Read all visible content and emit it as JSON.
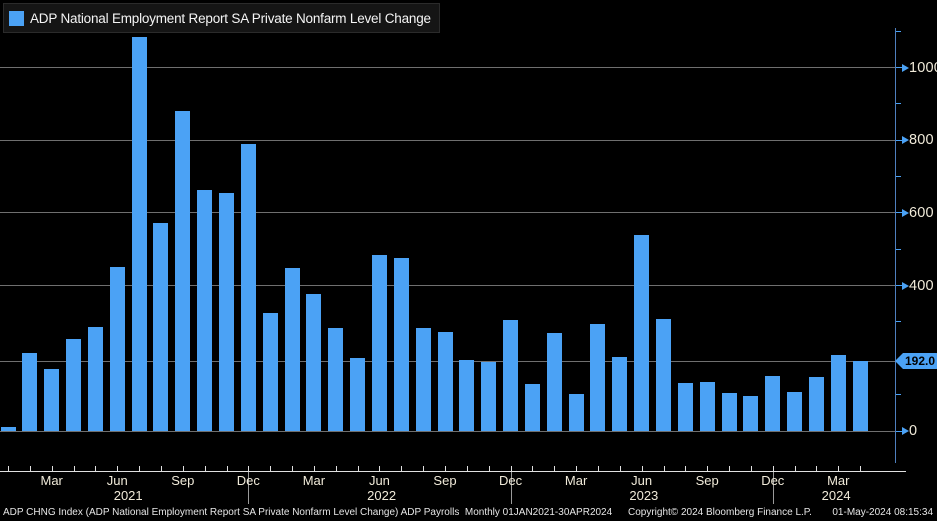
{
  "legend": {
    "label": "ADP National Employment Report SA Private Nonfarm Level Change"
  },
  "y_axis": {
    "labeled_ticks": [
      0,
      400,
      600,
      800,
      1000
    ],
    "minor_ticks": [
      100,
      300,
      500,
      700,
      900,
      1100
    ],
    "last_value_label": "192.0"
  },
  "x_axis": {
    "quarter_month_labels": [
      "Mar",
      "Jun",
      "Sep",
      "Dec"
    ],
    "year_labels": [
      {
        "text": "2021",
        "month_index": 5.5
      },
      {
        "text": "2022",
        "month_index": 17.1
      },
      {
        "text": "2023",
        "month_index": 29.1
      },
      {
        "text": "2024",
        "month_index": 37.9
      }
    ],
    "year_separator_month_indices": [
      11,
      23,
      35
    ]
  },
  "footer": {
    "security_info": "ADP CHNG Index (ADP National Employment Report SA Private Nonfarm Level Change) ADP Payrolls  Monthly 01JAN2021-30APR2024",
    "copyright": "Copyright© 2024 Bloomberg Finance L.P.",
    "timestamp": "01-May-2024 08:15:34"
  },
  "colors": {
    "accent": "#4ba2f5",
    "axis_line": "#4e7fbe",
    "grid": "#6f6f6f",
    "label": "#f0ead9",
    "x_axis_line": "#e0e0e0",
    "year_separator": "#9a9a9a",
    "badge_text": "#000000",
    "legend_bg": "#151515"
  },
  "chart_data": {
    "type": "bar",
    "title": "ADP National Employment Report SA Private Nonfarm Level Change",
    "x": [
      "Jan 2021",
      "Feb 2021",
      "Mar 2021",
      "Apr 2021",
      "May 2021",
      "Jun 2021",
      "Jul 2021",
      "Aug 2021",
      "Sep 2021",
      "Oct 2021",
      "Nov 2021",
      "Dec 2021",
      "Jan 2022",
      "Feb 2022",
      "Mar 2022",
      "Apr 2022",
      "May 2022",
      "Jun 2022",
      "Jul 2022",
      "Aug 2022",
      "Sep 2022",
      "Oct 2022",
      "Nov 2022",
      "Dec 2022",
      "Jan 2023",
      "Feb 2023",
      "Mar 2023",
      "Apr 2023",
      "May 2023",
      "Jun 2023",
      "Jul 2023",
      "Aug 2023",
      "Sep 2023",
      "Oct 2023",
      "Nov 2023",
      "Dec 2023",
      "Jan 2024",
      "Feb 2024",
      "Mar 2024",
      "Apr 2024"
    ],
    "values": [
      10,
      215,
      170,
      252,
      285,
      450,
      1083,
      572,
      880,
      662,
      656,
      789,
      325,
      449,
      378,
      284,
      200,
      484,
      477,
      282,
      273,
      195,
      190,
      305,
      128,
      270,
      101,
      293,
      203,
      540,
      307,
      133,
      136,
      105,
      96,
      152,
      108,
      149,
      209,
      192
    ],
    "xlabel": "",
    "ylabel": "",
    "ylim": [
      -90,
      1105
    ],
    "grid": true,
    "legend_position": "top-left",
    "last_value": 192.0
  }
}
